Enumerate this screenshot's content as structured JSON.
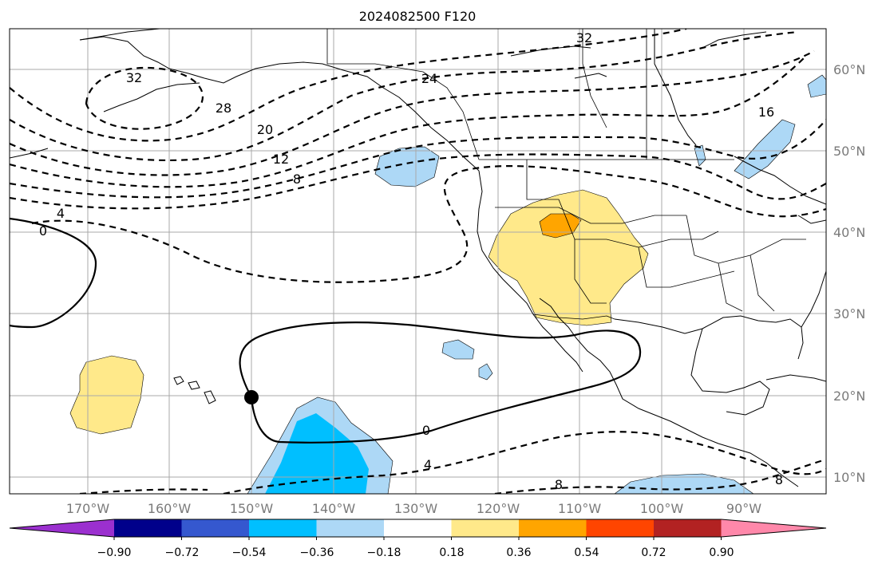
{
  "title": "2024082500 F120",
  "lon_labels": [
    "170°W",
    "160°W",
    "150°W",
    "140°W",
    "130°W",
    "120°W",
    "110°W",
    "100°W",
    "90°W"
  ],
  "lat_labels": [
    "60°N",
    "50°N",
    "40°N",
    "30°N",
    "20°N",
    "10°N"
  ],
  "colorbar": {
    "ticks": [
      "−0.90",
      "−0.72",
      "−0.54",
      "−0.36",
      "−0.18",
      "0.18",
      "0.36",
      "0.54",
      "0.72",
      "0.90"
    ],
    "colors": [
      "#9b30cf",
      "#00008b",
      "#3558cf",
      "#00bfff",
      "#add8f6",
      "#ffffff",
      "#ffe98a",
      "#ffa500",
      "#ff4500",
      "#b22222",
      "#ff88aa"
    ]
  },
  "contour_labels": [
    "32",
    "32",
    "28",
    "24",
    "20",
    "16",
    "12",
    "8",
    "4",
    "0",
    "0",
    "4",
    "8",
    "8"
  ],
  "marker": "hurricane-position"
}
